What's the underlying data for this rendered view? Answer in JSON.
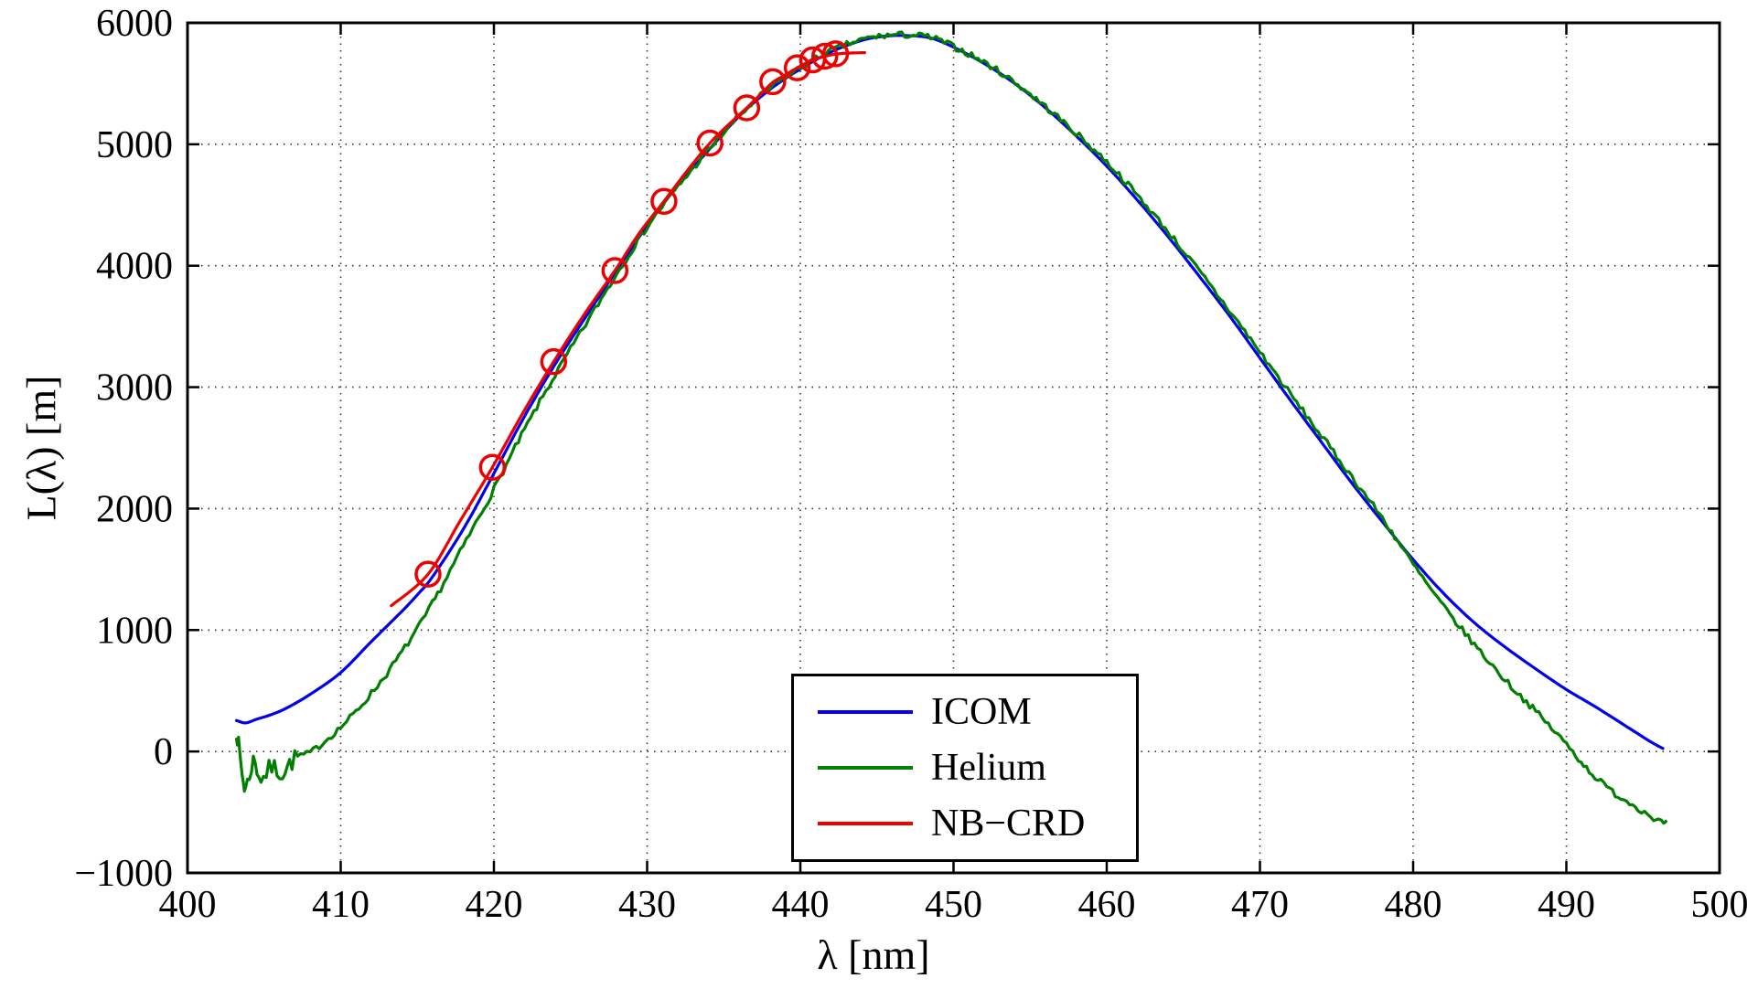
{
  "figure": {
    "background": "#ffffff",
    "grid_color": "#333333",
    "axis_color": "#000000"
  },
  "chart_data": {
    "type": "line",
    "title": "",
    "xlabel": "λ [nm]",
    "ylabel": "L(λ) [m]",
    "xlim": [
      400,
      500
    ],
    "ylim": [
      -1000,
      6000
    ],
    "xticks": [
      400,
      410,
      420,
      430,
      440,
      450,
      460,
      470,
      480,
      490,
      500
    ],
    "yticks": [
      -1000,
      0,
      1000,
      2000,
      3000,
      4000,
      5000,
      6000
    ],
    "xtick_labels": [
      "400",
      "410",
      "420",
      "430",
      "440",
      "450",
      "460",
      "470",
      "480",
      "490",
      "500"
    ],
    "ytick_labels": [
      "−1000",
      "0",
      "1000",
      "2000",
      "3000",
      "4000",
      "5000",
      "6000"
    ],
    "grid": "dotted",
    "legend": {
      "position": "inside-bottom-center",
      "entries": [
        {
          "label": "ICOM",
          "color": "#0000ee"
        },
        {
          "label": "Helium",
          "color": "#007f00"
        },
        {
          "label": "NB−CRD",
          "color": "#ee0000"
        }
      ]
    },
    "series": [
      {
        "name": "ICOM",
        "color": "#0000ee",
        "style": "smooth",
        "points": [
          [
            403.2,
            255
          ],
          [
            403.8,
            235
          ],
          [
            404.5,
            265
          ],
          [
            405.5,
            305
          ],
          [
            406.5,
            360
          ],
          [
            408,
            470
          ],
          [
            410,
            650
          ],
          [
            412,
            905
          ],
          [
            414,
            1155
          ],
          [
            415,
            1290
          ],
          [
            416,
            1440
          ],
          [
            418,
            1830
          ],
          [
            420,
            2290
          ],
          [
            422,
            2760
          ],
          [
            424,
            3190
          ],
          [
            426,
            3580
          ],
          [
            428,
            3960
          ],
          [
            430,
            4330
          ],
          [
            432,
            4660
          ],
          [
            434,
            4950
          ],
          [
            436,
            5230
          ],
          [
            438,
            5450
          ],
          [
            440,
            5620
          ],
          [
            442,
            5760
          ],
          [
            444,
            5855
          ],
          [
            445.5,
            5890
          ],
          [
            447,
            5895
          ],
          [
            448.5,
            5875
          ],
          [
            450,
            5800
          ],
          [
            452,
            5665
          ],
          [
            454,
            5500
          ],
          [
            456,
            5300
          ],
          [
            458,
            5070
          ],
          [
            460,
            4820
          ],
          [
            462,
            4540
          ],
          [
            464,
            4240
          ],
          [
            466,
            3920
          ],
          [
            468,
            3590
          ],
          [
            470,
            3240
          ],
          [
            472,
            2890
          ],
          [
            474,
            2550
          ],
          [
            476,
            2210
          ],
          [
            478,
            1890
          ],
          [
            480,
            1580
          ],
          [
            482,
            1300
          ],
          [
            484,
            1060
          ],
          [
            486,
            860
          ],
          [
            488,
            680
          ],
          [
            490,
            510
          ],
          [
            492,
            360
          ],
          [
            494,
            200
          ],
          [
            495.5,
            80
          ],
          [
            496.3,
            25
          ]
        ]
      },
      {
        "name": "Helium",
        "color": "#007f00",
        "style": "noisy",
        "noise": {
          "base_amplitude": 26,
          "start_amplitude": 80,
          "start_region_end": 407.5,
          "seed": 7
        },
        "points": [
          [
            403.2,
            180
          ],
          [
            403.5,
            -120
          ],
          [
            403.8,
            -300
          ],
          [
            404.3,
            -80
          ],
          [
            404.8,
            -220
          ],
          [
            405.5,
            -130
          ],
          [
            406.2,
            -170
          ],
          [
            407,
            -60
          ],
          [
            408,
            -10
          ],
          [
            409,
            90
          ],
          [
            410,
            200
          ],
          [
            411,
            330
          ],
          [
            412,
            480
          ],
          [
            413,
            640
          ],
          [
            414,
            820
          ],
          [
            415,
            1010
          ],
          [
            416,
            1220
          ],
          [
            418,
            1690
          ],
          [
            420,
            2160
          ],
          [
            422,
            2650
          ],
          [
            424,
            3100
          ],
          [
            426,
            3520
          ],
          [
            428,
            3930
          ],
          [
            430,
            4320
          ],
          [
            432,
            4650
          ],
          [
            434,
            4950
          ],
          [
            436,
            5230
          ],
          [
            438,
            5460
          ],
          [
            440,
            5630
          ],
          [
            442,
            5770
          ],
          [
            444,
            5860
          ],
          [
            445.5,
            5895
          ],
          [
            447,
            5900
          ],
          [
            448.5,
            5880
          ],
          [
            450,
            5805
          ],
          [
            452,
            5675
          ],
          [
            454,
            5510
          ],
          [
            456,
            5310
          ],
          [
            458,
            5090
          ],
          [
            460,
            4855
          ],
          [
            462,
            4580
          ],
          [
            464,
            4280
          ],
          [
            466,
            3960
          ],
          [
            468,
            3630
          ],
          [
            470,
            3290
          ],
          [
            472,
            2940
          ],
          [
            474,
            2600
          ],
          [
            476,
            2260
          ],
          [
            478,
            1920
          ],
          [
            480,
            1540
          ],
          [
            482,
            1190
          ],
          [
            484,
            880
          ],
          [
            486,
            590
          ],
          [
            488,
            330
          ],
          [
            490,
            60
          ],
          [
            491.5,
            -160
          ],
          [
            493,
            -330
          ],
          [
            494.5,
            -450
          ],
          [
            496,
            -570
          ],
          [
            496.5,
            -600
          ]
        ]
      },
      {
        "name": "NB-CRD",
        "color": "#ee0000",
        "style": "smooth",
        "points": [
          [
            413.3,
            1200
          ],
          [
            415.7,
            1460
          ],
          [
            417.8,
            1900
          ],
          [
            419.9,
            2340
          ],
          [
            421.9,
            2790
          ],
          [
            423.9,
            3210
          ],
          [
            425.9,
            3600
          ],
          [
            427.9,
            3960
          ],
          [
            429.5,
            4270
          ],
          [
            431.1,
            4530
          ],
          [
            432.6,
            4780
          ],
          [
            434.1,
            5010
          ],
          [
            435.3,
            5160
          ],
          [
            436.5,
            5300
          ],
          [
            437.4,
            5410
          ],
          [
            438.2,
            5510
          ],
          [
            439,
            5570
          ],
          [
            439.8,
            5630
          ],
          [
            440.8,
            5695
          ],
          [
            441.5,
            5720
          ],
          [
            442.2,
            5740
          ],
          [
            443,
            5750
          ],
          [
            444.2,
            5755
          ]
        ],
        "markers": [
          [
            415.7,
            1460
          ],
          [
            419.9,
            2340
          ],
          [
            423.9,
            3210
          ],
          [
            427.9,
            3960
          ],
          [
            431.1,
            4530
          ],
          [
            434.1,
            5010
          ],
          [
            436.5,
            5300
          ],
          [
            438.2,
            5515
          ],
          [
            439.8,
            5630
          ],
          [
            440.8,
            5695
          ],
          [
            441.6,
            5725
          ],
          [
            442.3,
            5745
          ]
        ]
      }
    ]
  }
}
